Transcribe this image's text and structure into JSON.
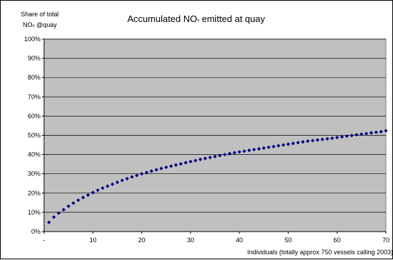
{
  "chart_data": {
    "type": "scatter",
    "title": "Accumulated NOx emitted at quay",
    "title_main": "Accumulated NO",
    "title_sub": "x",
    "title_rest": " emitted at quay",
    "ylabel_line1": "Share of total",
    "ylabel_line2_main": "NO",
    "ylabel_line2_sub": "x",
    "ylabel_line2_rest": " @quay",
    "xlabel": "Individuals (totally approx 750 vessels calling 2003)",
    "xlim": [
      0,
      70
    ],
    "ylim": [
      0,
      100
    ],
    "x_ticks": [
      "-",
      "10",
      "20",
      "30",
      "40",
      "50",
      "60",
      "70"
    ],
    "y_ticks": [
      "0%",
      "10%",
      "20%",
      "30%",
      "40%",
      "50%",
      "60%",
      "70%",
      "80%",
      "90%",
      "100%"
    ],
    "grid": true,
    "plot_background": "#c0c0c0",
    "marker_color": "#000080",
    "series": [
      {
        "x": [
          1,
          2,
          3,
          4,
          5,
          6,
          7,
          8,
          9,
          10,
          11,
          12,
          13,
          14,
          15,
          16,
          17,
          18,
          19,
          20,
          21,
          22,
          23,
          24,
          25,
          26,
          27,
          28,
          29,
          30,
          31,
          32,
          33,
          34,
          35,
          36,
          37,
          38,
          39,
          40,
          41,
          42,
          43,
          44,
          45,
          46,
          47,
          48,
          49,
          50,
          51,
          52,
          53,
          54,
          55,
          56,
          57,
          58,
          59,
          60,
          61,
          62,
          63,
          64,
          65,
          66,
          67,
          68,
          69,
          70
        ],
        "values": [
          4.8,
          7.5,
          9.6,
          11.4,
          13.2,
          14.8,
          16.3,
          17.7,
          19.0,
          20.3,
          21.5,
          22.6,
          23.6,
          24.6,
          25.6,
          26.6,
          27.5,
          28.4,
          29.2,
          30.0,
          30.7,
          31.4,
          32.1,
          32.8,
          33.4,
          34.0,
          34.6,
          35.2,
          35.8,
          36.4,
          36.9,
          37.5,
          38.0,
          38.5,
          39.0,
          39.5,
          40.0,
          40.5,
          41.0,
          41.4,
          41.8,
          42.2,
          42.6,
          43.0,
          43.4,
          43.8,
          44.2,
          44.6,
          45.0,
          45.4,
          45.8,
          46.2,
          46.6,
          47.0,
          47.3,
          47.6,
          47.9,
          48.2,
          48.5,
          48.9,
          49.2,
          49.6,
          49.9,
          50.3,
          50.6,
          50.9,
          51.3,
          51.6,
          51.9,
          52.4
        ]
      }
    ]
  }
}
